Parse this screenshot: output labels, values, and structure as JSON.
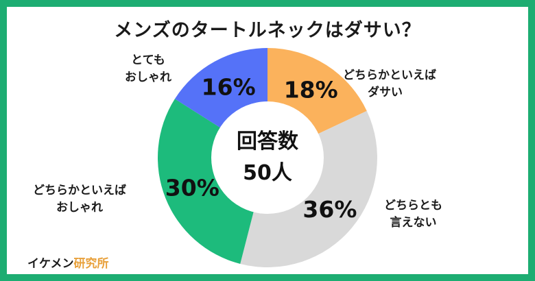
{
  "title": "メンズのタートルネックはダサい？",
  "center": {
    "line1": "回答数",
    "line2": "50人"
  },
  "brand": {
    "part1": "イケメン",
    "part2": "研究所"
  },
  "colors": {
    "border": "#1dad72",
    "slices": [
      "#fbb25c",
      "#d9d9d9",
      "#1dbb7c",
      "#5572f8"
    ],
    "pct_text": "#111111",
    "hole": "#ffffff"
  },
  "chart_data": {
    "type": "pie",
    "donut": true,
    "title": "メンズのタートルネックはダサい？",
    "categories": [
      "どちらかといえばダサい",
      "どちらとも言えない",
      "どちらかといえばおしゃれ",
      "とてもおしゃれ"
    ],
    "values": [
      18,
      36,
      30,
      16
    ],
    "value_labels": [
      "18%",
      "36%",
      "30%",
      "16%"
    ],
    "category_lines": [
      [
        "どちらかといえば",
        "ダサい"
      ],
      [
        "どちらとも",
        "言えない"
      ],
      [
        "どちらかといえば",
        "おしゃれ"
      ],
      [
        "とても",
        "おしゃれ"
      ]
    ],
    "total_label": "回答数 50人"
  }
}
